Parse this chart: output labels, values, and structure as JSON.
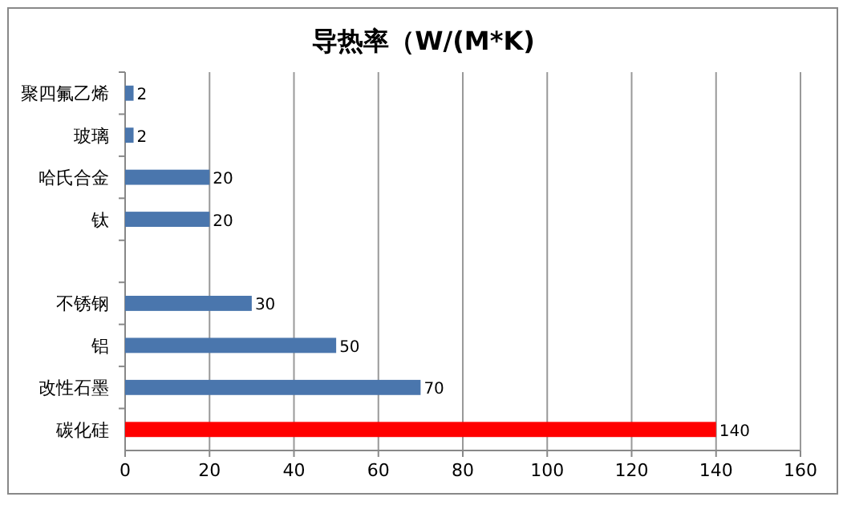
{
  "chart_data": {
    "type": "bar",
    "orientation": "horizontal",
    "title": "导热率（W/(M*K)",
    "categories": [
      "聚四氟乙烯",
      "玻璃",
      "哈氏合金",
      "钛",
      null,
      "不锈钢",
      "铝",
      "改性石墨",
      "碳化硅"
    ],
    "values": [
      2,
      2,
      20,
      20,
      null,
      30,
      50,
      70,
      140
    ],
    "colors": [
      "#4a76ad",
      "#4a76ad",
      "#4a76ad",
      "#4a76ad",
      null,
      "#4a76ad",
      "#4a76ad",
      "#4a76ad",
      "#ff0000"
    ],
    "value_labels": [
      "2",
      "2",
      "20",
      "20",
      null,
      "30",
      "50",
      "70",
      "140"
    ],
    "xlim": [
      0,
      160
    ],
    "xticks": [
      0,
      20,
      40,
      60,
      80,
      100,
      120,
      140,
      160
    ],
    "grid": "x"
  }
}
